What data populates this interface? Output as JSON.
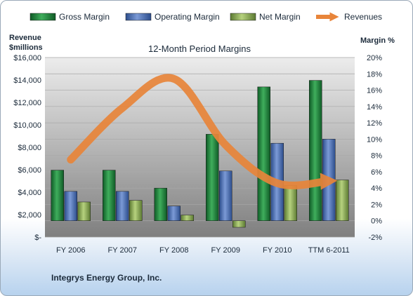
{
  "chart_data": {
    "type": "bar",
    "title": "12-Month Period Margins",
    "categories": [
      "FY 2006",
      "FY 2007",
      "FY 2008",
      "FY 2009",
      "FY 2010",
      "TTM 6-2011"
    ],
    "y_left": {
      "label_line1": "Revenue",
      "label_line2": "$millions",
      "min": 0,
      "max": 16000,
      "step": 2000,
      "ticks": [
        "$-",
        "$2,000",
        "$4,000",
        "$6,000",
        "$8,000",
        "$10,000",
        "$12,000",
        "$14,000",
        "$16,000"
      ]
    },
    "y_right": {
      "label": "Margin %",
      "min": -2,
      "max": 20,
      "step": 2,
      "ticks": [
        "-2%",
        "0%",
        "2%",
        "4%",
        "6%",
        "8%",
        "10%",
        "12%",
        "14%",
        "16%",
        "18%",
        "20%"
      ]
    },
    "series": [
      {
        "name": "Gross Margin",
        "axis": "right",
        "color": "#1e7d3c",
        "values": [
          6.2,
          6.2,
          4.0,
          10.6,
          16.4,
          17.2
        ]
      },
      {
        "name": "Operating Margin",
        "axis": "right",
        "color": "#4a6fb4",
        "values": [
          3.6,
          3.6,
          1.8,
          6.1,
          9.5,
          10.0
        ]
      },
      {
        "name": "Net Margin",
        "axis": "right",
        "color": "#8db05a",
        "values": [
          2.3,
          2.5,
          0.7,
          -0.8,
          4.3,
          5.0
        ]
      },
      {
        "name": "Revenues",
        "axis": "left",
        "type": "line",
        "color": "#e8853a",
        "values": [
          6900,
          11500,
          14100,
          8200,
          4800,
          5000
        ]
      }
    ],
    "grid": true,
    "legend": "top"
  },
  "company": "Integrys Energy Group, Inc."
}
